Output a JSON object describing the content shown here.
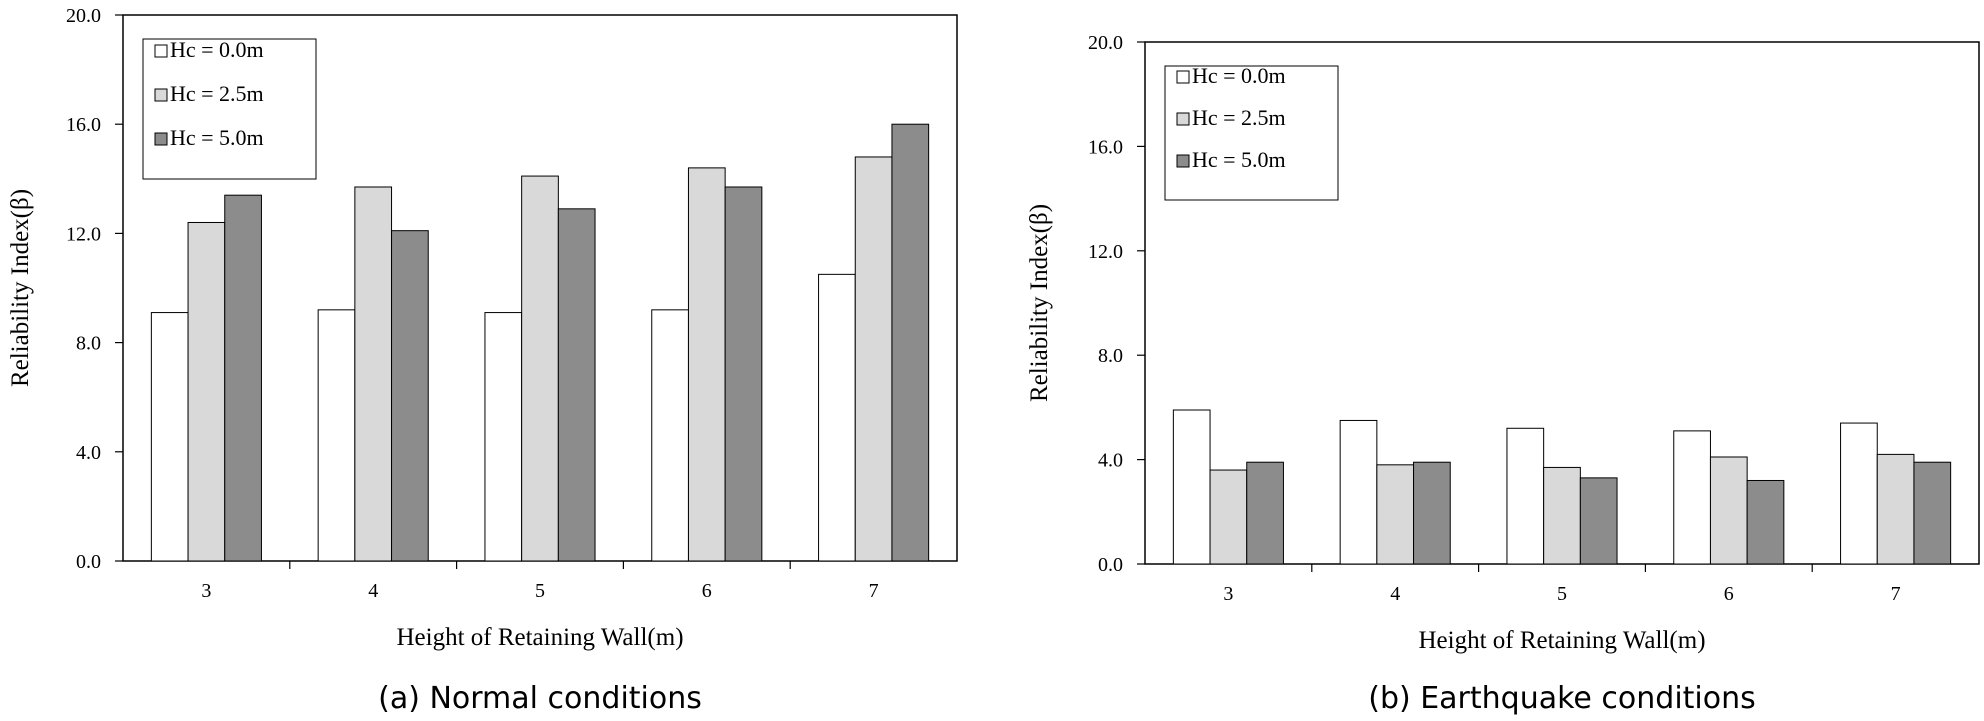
{
  "chart_data": [
    {
      "type": "bar",
      "caption": "(a) Normal conditions",
      "categories": [
        "3",
        "4",
        "5",
        "6",
        "7"
      ],
      "series": [
        {
          "name": "Hc = 0.0m",
          "color": "#ffffff",
          "values": [
            9.1,
            9.2,
            9.1,
            9.2,
            10.5
          ]
        },
        {
          "name": "Hc = 2.5m",
          "color": "#d9d9d9",
          "values": [
            12.4,
            13.7,
            14.1,
            14.4,
            14.8
          ]
        },
        {
          "name": "Hc = 5.0m",
          "color": "#8c8c8c",
          "values": [
            13.4,
            12.1,
            12.9,
            13.7,
            16.0
          ]
        }
      ],
      "xlabel": "Height of Retaining Wall(m)",
      "ylabel": "Reliability Index(β)",
      "ylim": [
        0,
        20
      ],
      "yticks": [
        "0.0",
        "4.0",
        "8.0",
        "12.0",
        "16.0",
        "20.0"
      ],
      "legend": "top-left",
      "grid": false
    },
    {
      "type": "bar",
      "caption": "(b) Earthquake conditions",
      "categories": [
        "3",
        "4",
        "5",
        "6",
        "7"
      ],
      "series": [
        {
          "name": "Hc = 0.0m",
          "color": "#ffffff",
          "values": [
            5.9,
            5.5,
            5.2,
            5.1,
            5.4
          ]
        },
        {
          "name": "Hc = 2.5m",
          "color": "#d9d9d9",
          "values": [
            3.6,
            3.8,
            3.7,
            4.1,
            4.2
          ]
        },
        {
          "name": "Hc = 5.0m",
          "color": "#8c8c8c",
          "values": [
            3.9,
            3.9,
            3.3,
            3.2,
            3.9
          ]
        }
      ],
      "xlabel": "Height of Retaining Wall(m)",
      "ylabel": "Reliability Index(β)",
      "ylim": [
        0,
        20
      ],
      "yticks": [
        "0.0",
        "4.0",
        "8.0",
        "12.0",
        "16.0",
        "20.0"
      ],
      "legend": "top-left",
      "grid": false
    }
  ]
}
